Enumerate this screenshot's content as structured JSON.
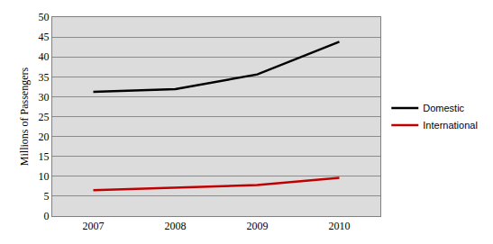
{
  "chart_data": {
    "type": "line",
    "y_label": "Millions of Passengers",
    "categories": [
      "2007",
      "2008",
      "2009",
      "2010"
    ],
    "series": [
      {
        "name": "Domestic",
        "color": "#000000",
        "values": [
          31.2,
          31.9,
          35.6,
          43.8
        ]
      },
      {
        "name": "International",
        "color": "#c00000",
        "values": [
          6.5,
          7.1,
          7.8,
          9.6
        ]
      }
    ],
    "ylim": [
      0,
      50
    ],
    "yticks": [
      0,
      5,
      10,
      15,
      20,
      25,
      30,
      35,
      40,
      45,
      50
    ],
    "grid": true,
    "legend": "right"
  }
}
